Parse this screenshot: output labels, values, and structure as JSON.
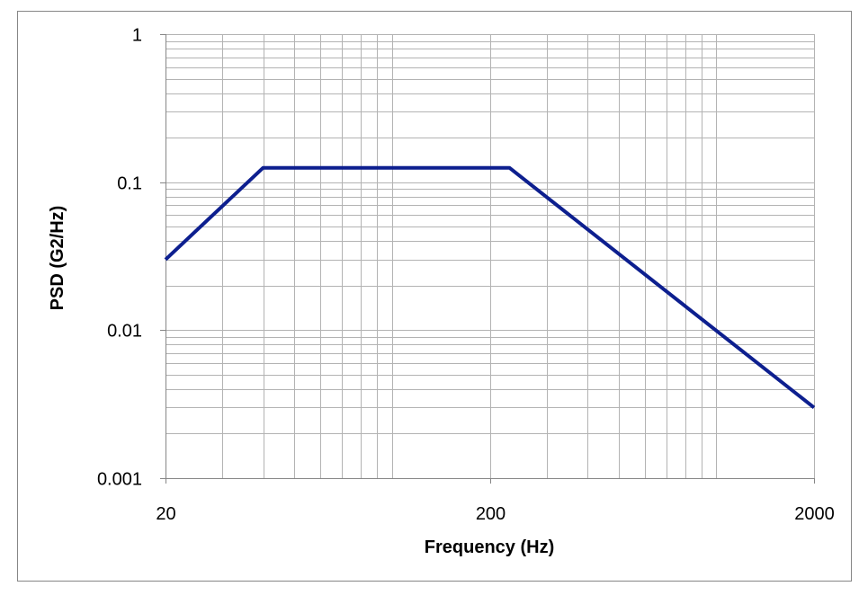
{
  "chart_data": {
    "type": "line",
    "title": "",
    "xlabel": "Frequency (Hz)",
    "ylabel": "PSD (G2/Hz)",
    "x_scale": "log",
    "y_scale": "log",
    "xlim": [
      20,
      2000
    ],
    "ylim": [
      0.001,
      1
    ],
    "x_ticks": [
      20,
      200,
      2000
    ],
    "x_tick_labels": [
      "20",
      "200",
      "2000"
    ],
    "y_ticks": [
      0.001,
      0.01,
      0.1,
      1
    ],
    "y_tick_labels": [
      "0.001",
      "0.01",
      "0.1",
      "1"
    ],
    "grid": true,
    "legend": "none",
    "series": [
      {
        "x": [
          20,
          40,
          230,
          2000
        ],
        "y": [
          0.03,
          0.125,
          0.125,
          0.003
        ],
        "color": "#0d1f8f"
      }
    ]
  },
  "colors": {
    "grid": "#b3b3b3",
    "axis": "#868686",
    "frame": "#868686",
    "line": "#0d1f8f"
  }
}
